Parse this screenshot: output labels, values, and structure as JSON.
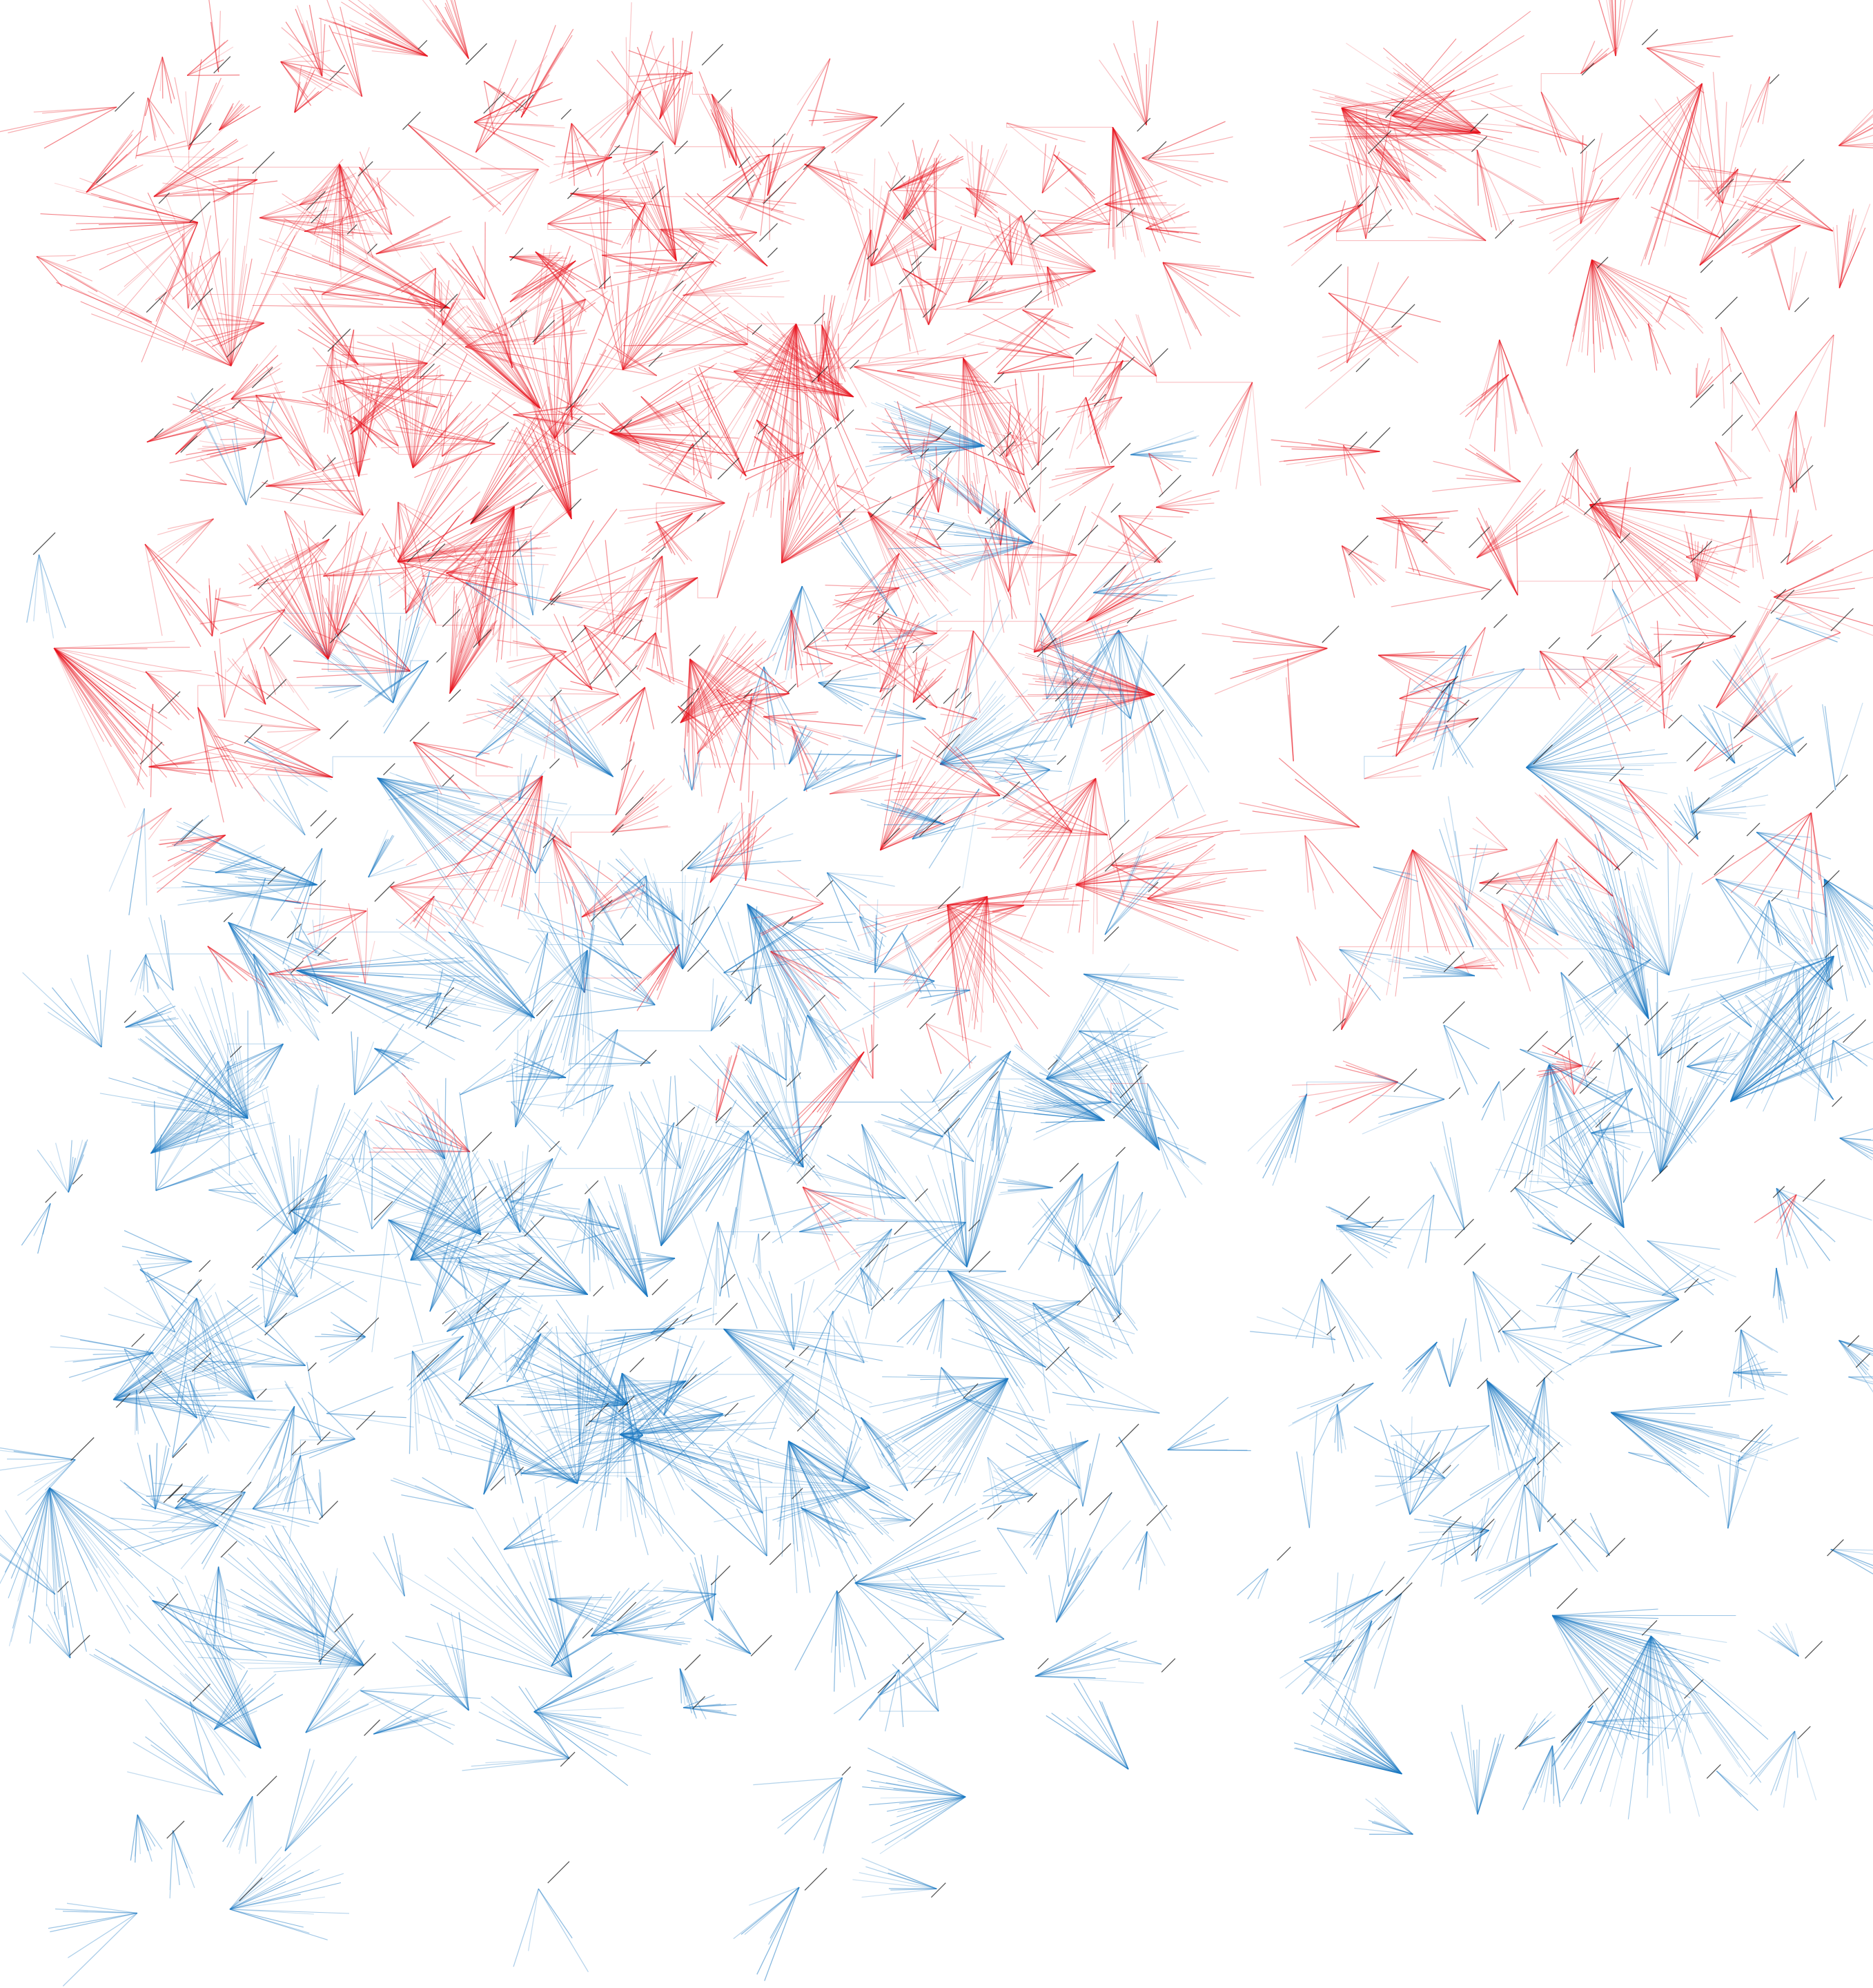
{
  "artwork": {
    "kind": "generative fan-line network",
    "background_color": "#ffffff",
    "palette": {
      "upper_color": "#e8141e",
      "lower_color": "#1a78c2",
      "tick_color": "#1e1e1e"
    },
    "gradient_direction": "top-to-bottom",
    "central_vertical_gap": true,
    "text": []
  }
}
